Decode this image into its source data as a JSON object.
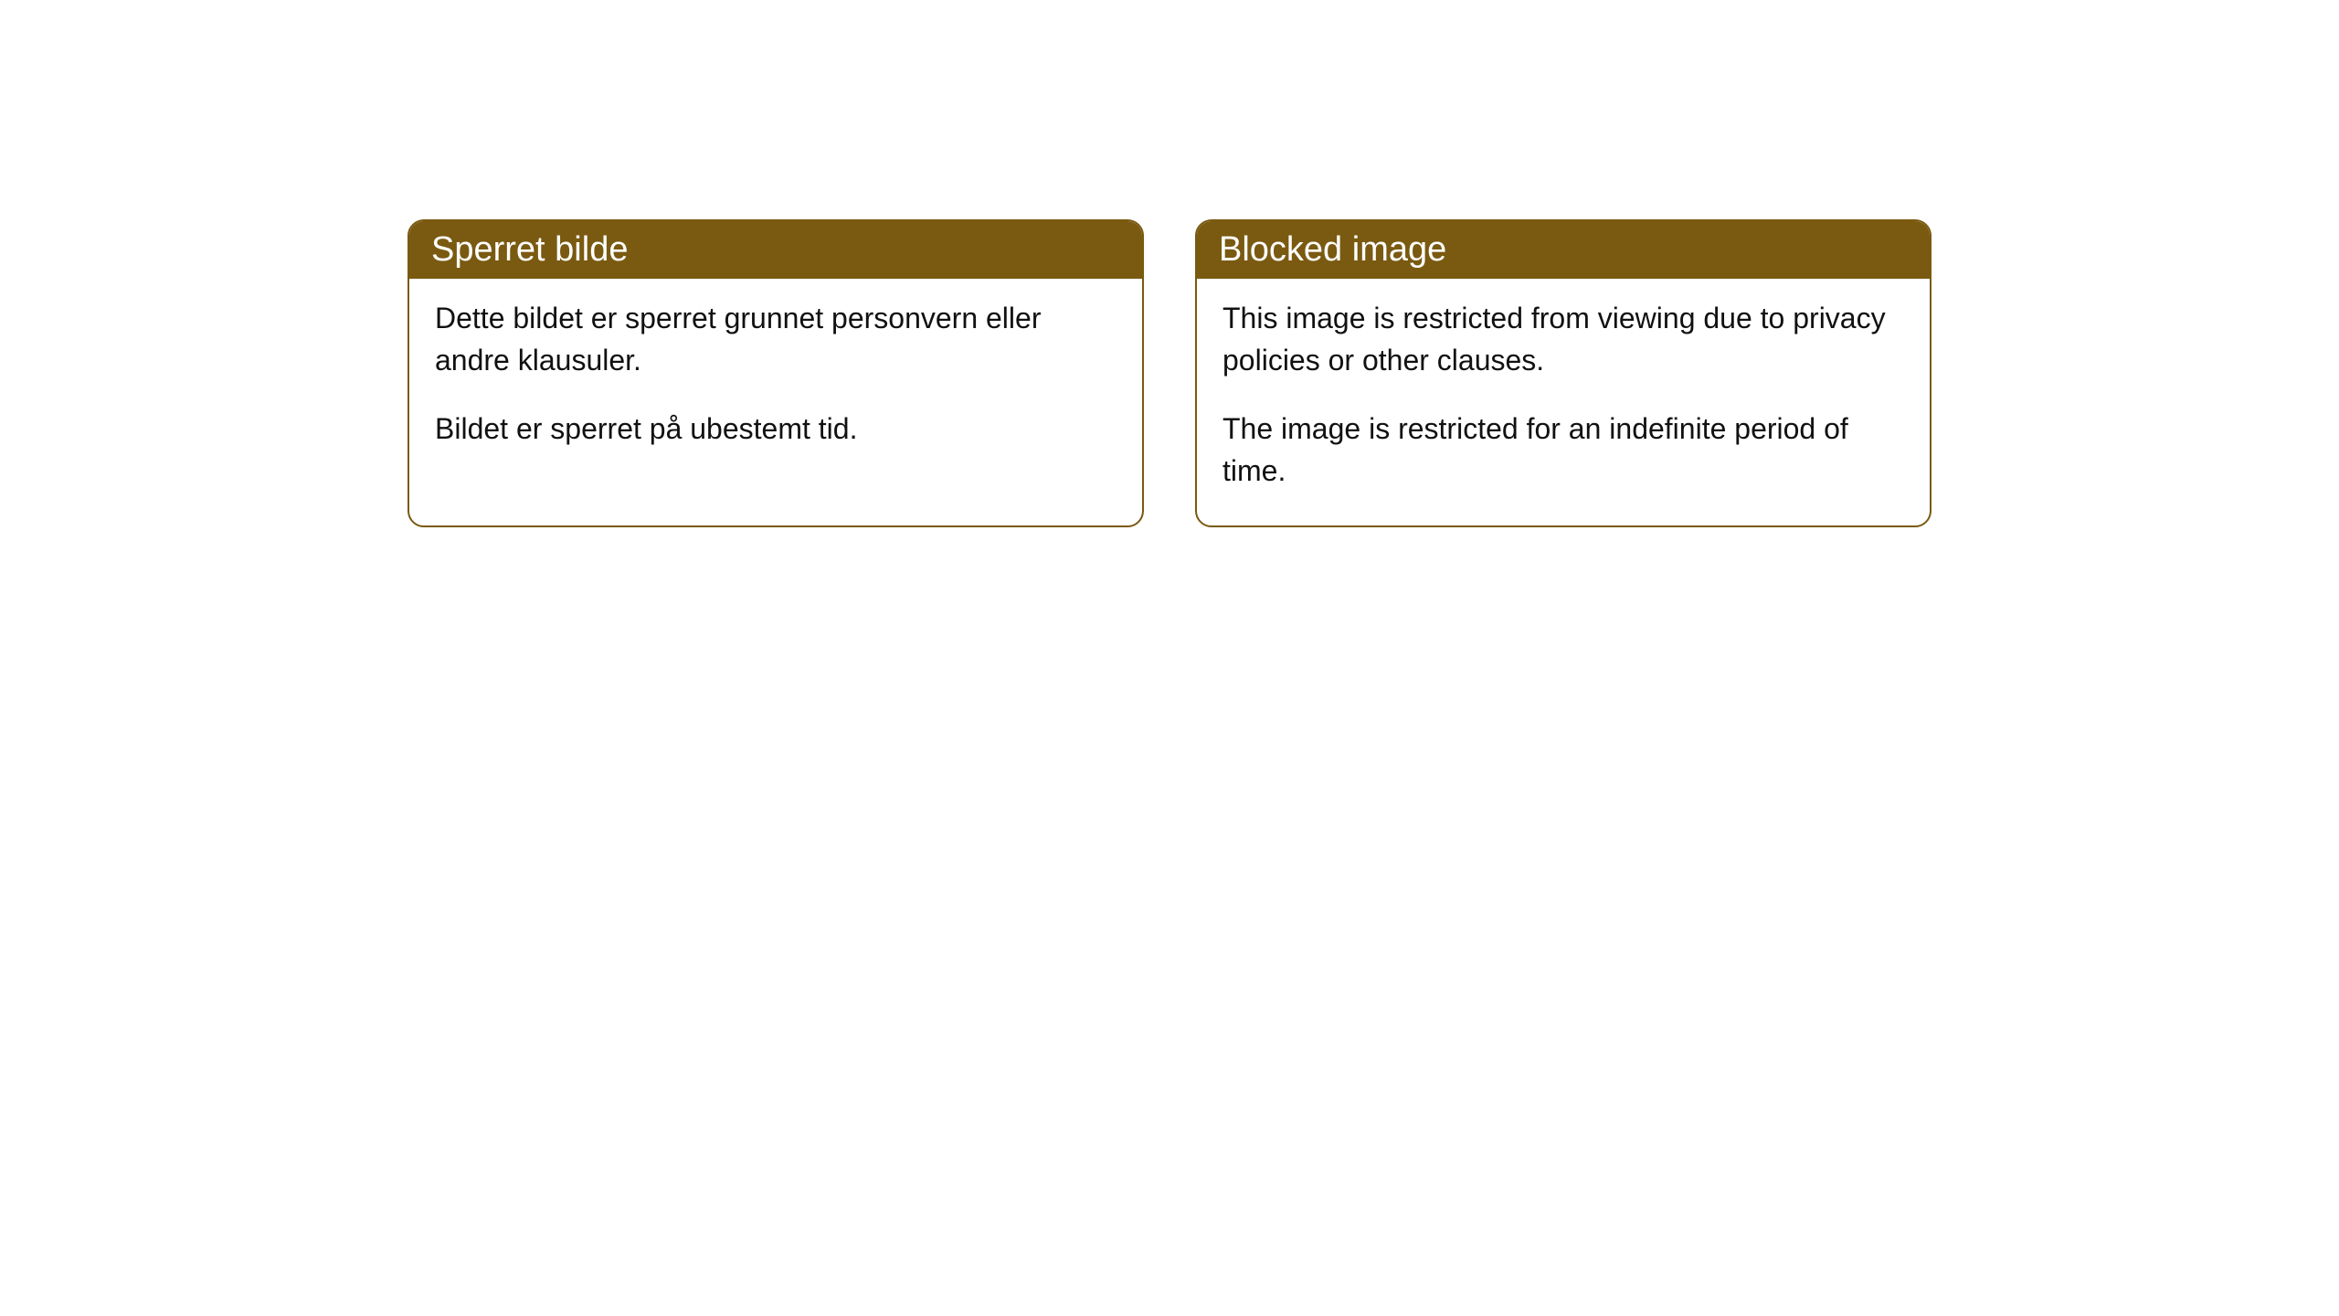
{
  "cards": [
    {
      "title": "Sperret bilde",
      "paragraph1": "Dette bildet er sperret grunnet personvern eller andre klausuler.",
      "paragraph2": "Bildet er sperret på ubestemt tid."
    },
    {
      "title": "Blocked image",
      "paragraph1": "This image is restricted from viewing due to privacy policies or other clauses.",
      "paragraph2": "The image is restricted for an indefinite period of time."
    }
  ],
  "styles": {
    "header_background_color": "#7a5a11",
    "header_text_color": "#ffffff",
    "border_color": "#7a5a11",
    "card_background_color": "#ffffff",
    "body_text_color": "#111111",
    "border_radius": 18,
    "title_fontsize": 38,
    "body_fontsize": 32
  }
}
